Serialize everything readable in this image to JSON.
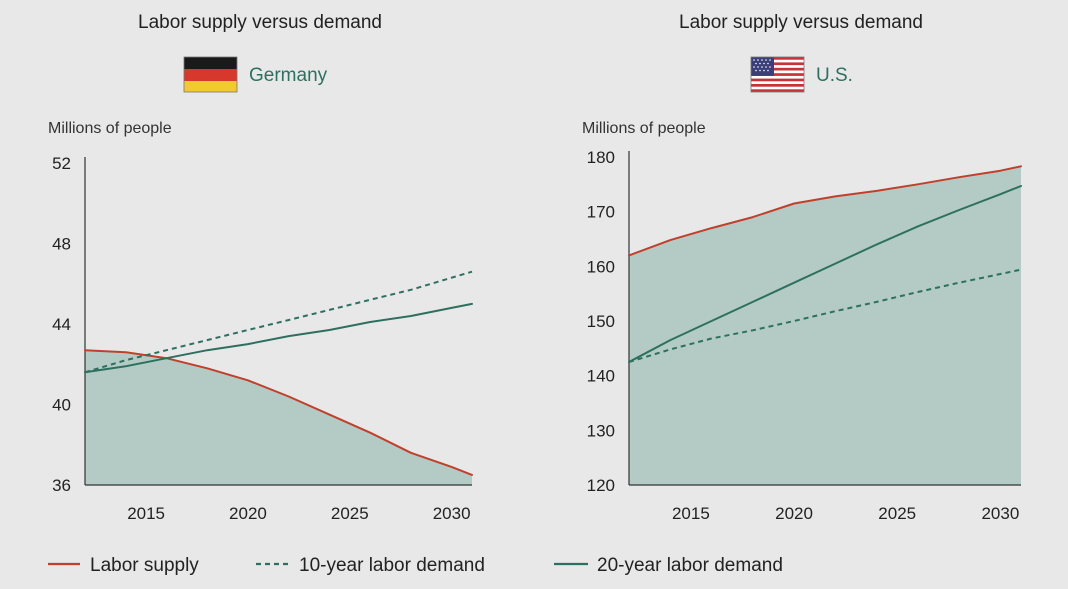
{
  "colors": {
    "supply": "#c0402c",
    "demand": "#2e7060",
    "fill": "#b3cbc4",
    "axis": "#333333",
    "country_text": "#2e7060"
  },
  "legend": [
    {
      "label": "Labor supply",
      "style": "solid",
      "color": "#c0402c"
    },
    {
      "label": "10-year labor demand",
      "style": "dashed",
      "color": "#2e7060"
    },
    {
      "label": "20-year labor demand",
      "style": "solid",
      "color": "#2e7060"
    }
  ],
  "chart_data": [
    {
      "type": "line",
      "title": "Labor supply versus demand",
      "country": "Germany",
      "flag": "germany-flag",
      "ylabel": "Millions of people",
      "xlim": [
        2012,
        2031
      ],
      "ylim": [
        36,
        52
      ],
      "yticks": [
        "52",
        "48",
        "44",
        "40",
        "36"
      ],
      "ytick_values": [
        52,
        48,
        44,
        40,
        36
      ],
      "xticks": [
        "2015",
        "2020",
        "2025",
        "2030"
      ],
      "xtick_values": [
        2015,
        2020,
        2025,
        2030
      ],
      "x": [
        2012,
        2014,
        2016,
        2018,
        2020,
        2022,
        2024,
        2026,
        2028,
        2030,
        2031
      ],
      "fill_under": "Labor supply",
      "series": [
        {
          "name": "Labor supply",
          "style": "solid",
          "values": [
            42.7,
            42.6,
            42.3,
            41.8,
            41.2,
            40.4,
            39.5,
            38.6,
            37.6,
            36.9,
            36.5
          ]
        },
        {
          "name": "10-year labor demand",
          "style": "dashed",
          "values": [
            41.6,
            42.2,
            42.7,
            43.2,
            43.7,
            44.2,
            44.7,
            45.2,
            45.7,
            46.3,
            46.6
          ]
        },
        {
          "name": "20-year labor demand",
          "style": "solid",
          "values": [
            41.6,
            41.9,
            42.3,
            42.7,
            43.0,
            43.4,
            43.7,
            44.1,
            44.4,
            44.8,
            45.0
          ]
        }
      ]
    },
    {
      "type": "line",
      "title": "Labor supply versus demand",
      "country": "U.S.",
      "flag": "us-flag",
      "ylabel": "Millions of people",
      "xlim": [
        2012,
        2031
      ],
      "ylim": [
        120,
        180
      ],
      "yticks": [
        "180",
        "170",
        "160",
        "150",
        "140",
        "130",
        "120"
      ],
      "ytick_values": [
        180,
        170,
        160,
        150,
        140,
        130,
        120
      ],
      "xticks": [
        "2015",
        "2020",
        "2025",
        "2030"
      ],
      "xtick_values": [
        2015,
        2020,
        2025,
        2030
      ],
      "x": [
        2012,
        2014,
        2016,
        2018,
        2020,
        2022,
        2024,
        2026,
        2028,
        2030,
        2031
      ],
      "fill_under": "Labor supply",
      "series": [
        {
          "name": "Labor supply",
          "style": "solid",
          "values": [
            162,
            164.8,
            167,
            169,
            171.5,
            172.8,
            173.8,
            175,
            176.3,
            177.5,
            178.3
          ]
        },
        {
          "name": "10-year labor demand",
          "style": "dashed",
          "values": [
            142.5,
            144.8,
            146.8,
            148.3,
            150,
            151.8,
            153.5,
            155.3,
            157,
            158.6,
            159.4
          ]
        },
        {
          "name": "20-year labor demand",
          "style": "solid",
          "values": [
            142.5,
            146.5,
            150,
            153.5,
            157,
            160.5,
            164,
            167.3,
            170.3,
            173.2,
            174.7
          ]
        }
      ]
    }
  ]
}
